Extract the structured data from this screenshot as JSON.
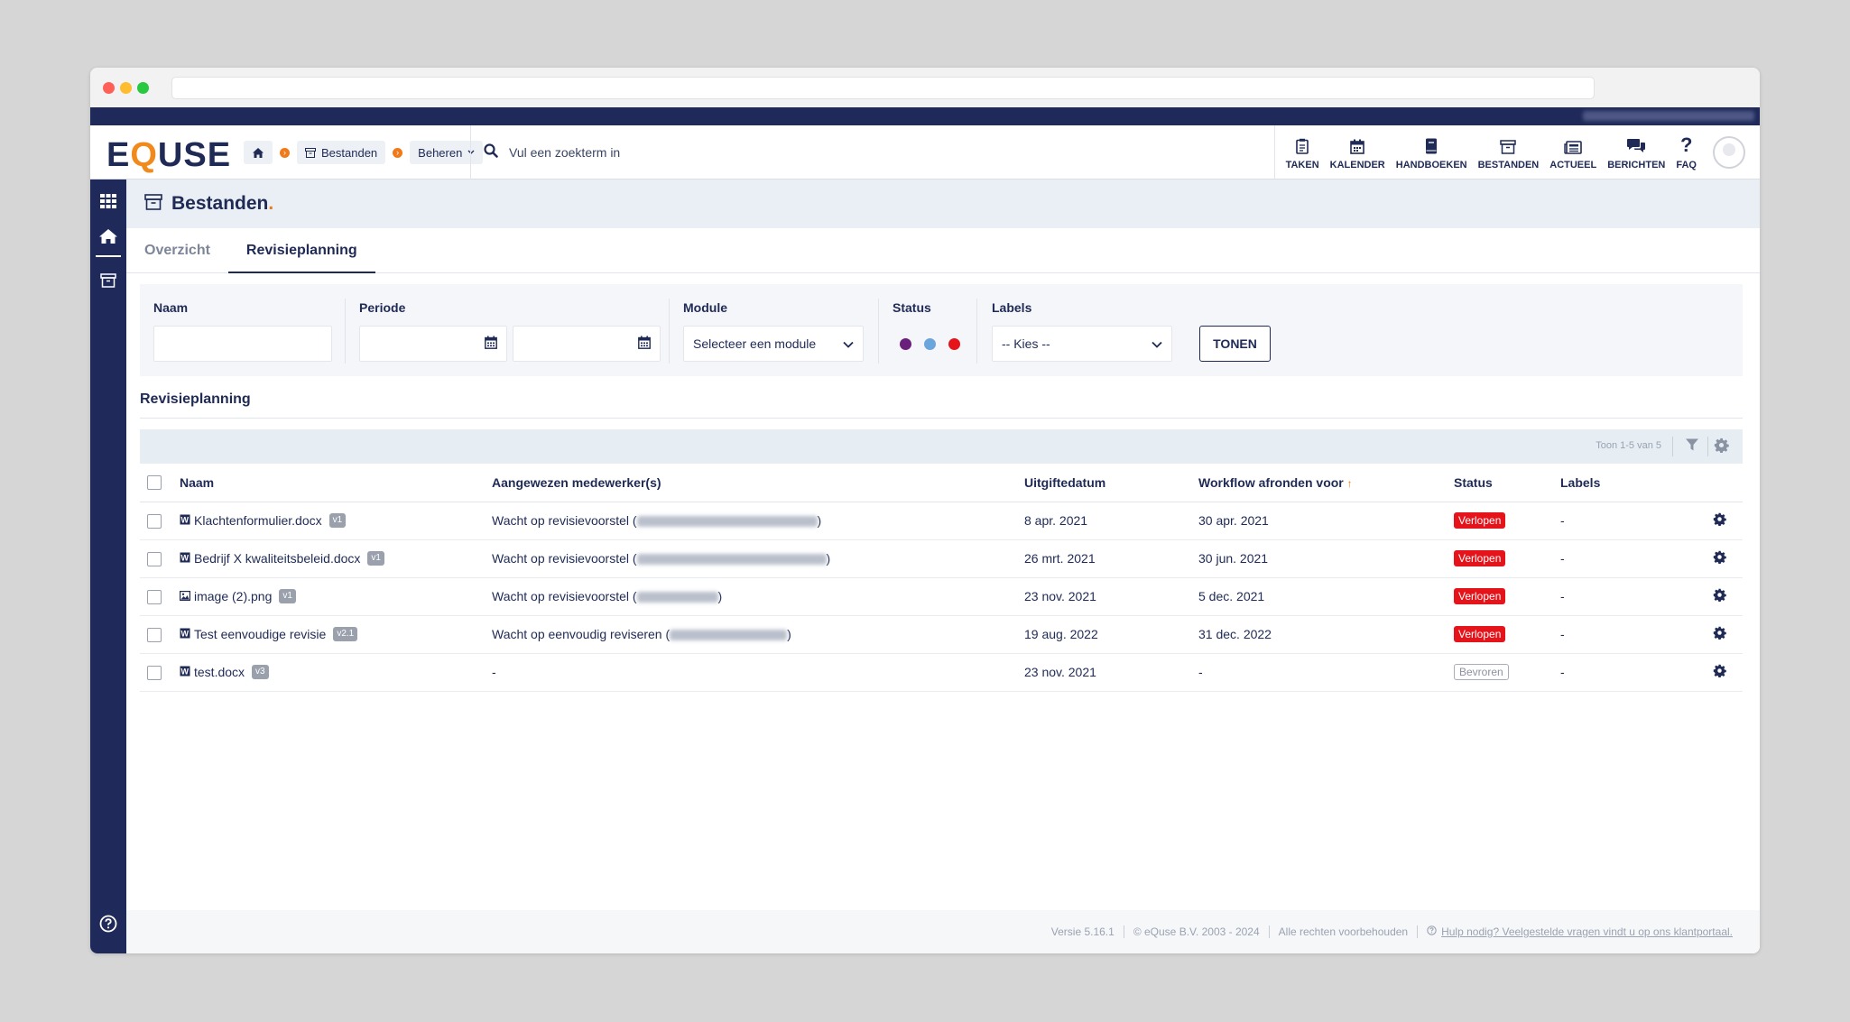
{
  "app": {
    "logo_pre": "E",
    "logo_q": "Q",
    "logo_post": "USE"
  },
  "breadcrumb": {
    "files_label": "Bestanden",
    "manage_label": "Beheren"
  },
  "search": {
    "placeholder": "Vul een zoekterm in"
  },
  "topnav": [
    {
      "label": "TAKEN",
      "icon": "clipboard-icon"
    },
    {
      "label": "KALENDER",
      "icon": "calendar-icon"
    },
    {
      "label": "HANDBOEKEN",
      "icon": "book-icon"
    },
    {
      "label": "BESTANDEN",
      "icon": "archive-icon"
    },
    {
      "label": "ACTUEEL",
      "icon": "news-icon"
    },
    {
      "label": "BERICHTEN",
      "icon": "chat-icon"
    },
    {
      "label": "FAQ",
      "icon": "question-icon"
    }
  ],
  "page": {
    "title": "Bestanden",
    "title_dot": "."
  },
  "tabs": {
    "overview": "Overzicht",
    "revision": "Revisieplanning"
  },
  "filters": {
    "name_label": "Naam",
    "period_label": "Periode",
    "module_label": "Module",
    "module_value": "Selecteer een module",
    "status_label": "Status",
    "status_colors": [
      "#6a1f7d",
      "#6aa5dc",
      "#e5141b"
    ],
    "labels_label": "Labels",
    "labels_value": "-- Kies --",
    "show_button": "TONEN"
  },
  "section": {
    "title": "Revisieplanning"
  },
  "table": {
    "count": "Toon 1-5 van 5",
    "headers": {
      "name": "Naam",
      "assigned": "Aangewezen medewerker(s)",
      "issue_date": "Uitgiftedatum",
      "workflow": "Workflow afronden voor",
      "status": "Status",
      "labels": "Labels"
    },
    "rows": [
      {
        "name": "Klachtenformulier.docx",
        "version": "v1",
        "icon": "word-doc-icon",
        "assigned": "Wacht op revisievoorstel (",
        "assigned_end": ")",
        "issue_date": "8 apr. 2021",
        "workflow": "30 apr. 2021",
        "status": "Verlopen",
        "labels": "-"
      },
      {
        "name": "Bedrijf X kwaliteitsbeleid.docx",
        "version": "v1",
        "icon": "word-doc-icon",
        "assigned": "Wacht op revisievoorstel (",
        "assigned_end": ")",
        "issue_date": "26 mrt. 2021",
        "workflow": "30 jun. 2021",
        "status": "Verlopen",
        "labels": "-"
      },
      {
        "name": "image (2).png",
        "version": "v1",
        "icon": "image-icon",
        "assigned": "Wacht op revisievoorstel (",
        "assigned_end": ")",
        "issue_date": "23 nov. 2021",
        "workflow": "5 dec. 2021",
        "status": "Verlopen",
        "labels": "-"
      },
      {
        "name": "Test eenvoudige revisie",
        "version": "v2.1",
        "icon": "word-doc-icon",
        "assigned": "Wacht op eenvoudig reviseren (",
        "assigned_end": ")",
        "issue_date": "19 aug. 2022",
        "workflow": "31 dec. 2022",
        "status": "Verlopen",
        "labels": "-"
      },
      {
        "name": "test.docx",
        "version": "v3",
        "icon": "word-doc-icon",
        "assigned": "-",
        "assigned_end": "",
        "issue_date": "23 nov. 2021",
        "workflow": "-",
        "status": "Bevroren",
        "labels": "-"
      }
    ]
  },
  "footer": {
    "version": "Versie 5.16.1",
    "copyright": "© eQuse B.V. 2003 - 2024",
    "rights": "Alle rechten voorbehouden",
    "help": "Hulp nodig? Veelgestelde vragen vindt u op ons klantportaal."
  }
}
